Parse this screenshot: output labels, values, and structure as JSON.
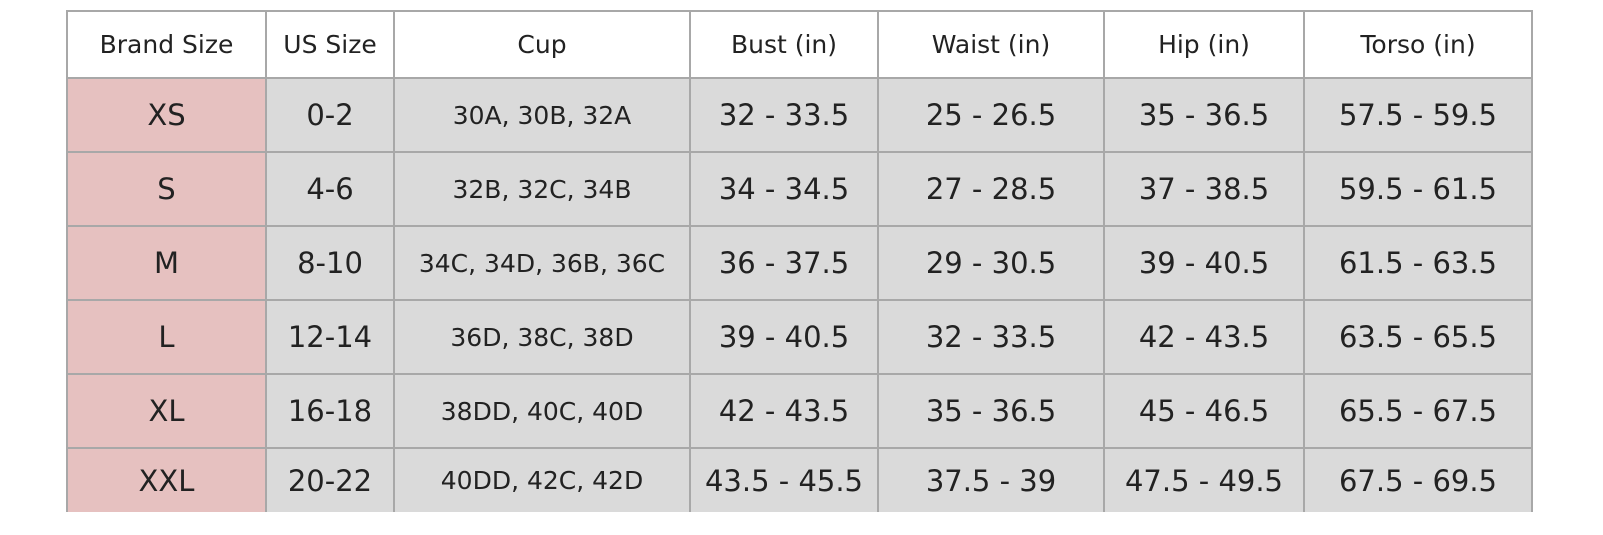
{
  "table": {
    "columns": [
      "Brand Size",
      "US Size",
      "Cup",
      "Bust (in)",
      "Waist (in)",
      "Hip (in)",
      "Torso (in)"
    ],
    "rows": [
      [
        "XS",
        "0-2",
        "30A, 30B, 32A",
        "32 - 33.5",
        "25 - 26.5",
        "35 - 36.5",
        "57.5 - 59.5"
      ],
      [
        "S",
        "4-6",
        "32B, 32C, 34B",
        "34 - 34.5",
        "27 - 28.5",
        "37 - 38.5",
        "59.5 - 61.5"
      ],
      [
        "M",
        "8-10",
        "34C, 34D, 36B, 36C",
        "36 - 37.5",
        "29 - 30.5",
        "39 - 40.5",
        "61.5 - 63.5"
      ],
      [
        "L",
        "12-14",
        "36D, 38C, 38D",
        "39 - 40.5",
        "32 - 33.5",
        "42 - 43.5",
        "63.5 - 65.5"
      ],
      [
        "XL",
        "16-18",
        "38DD, 40C, 40D",
        "42 - 43.5",
        "35 - 36.5",
        "45 - 46.5",
        "65.5 - 67.5"
      ],
      [
        "XXL",
        "20-22",
        "40DD, 42C, 42D",
        "43.5 - 45.5",
        "37.5 - 39",
        "47.5 - 49.5",
        "67.5 - 69.5"
      ]
    ]
  }
}
